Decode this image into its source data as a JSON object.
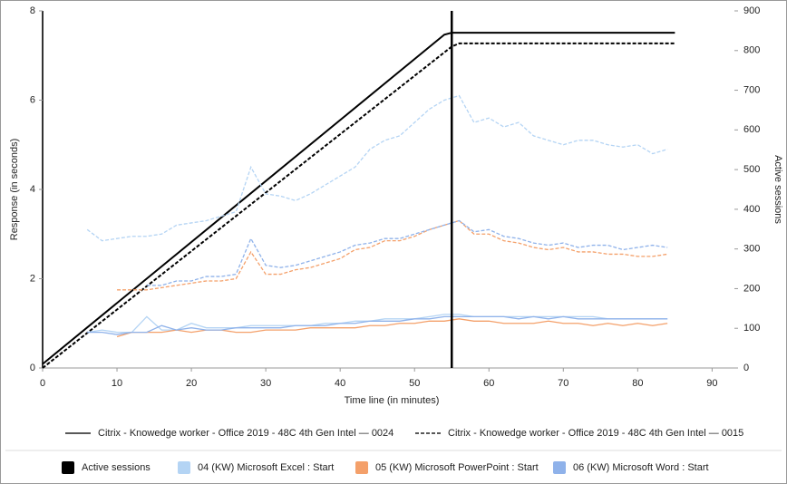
{
  "chart_data": {
    "type": "line",
    "xlabel": "Time line (in minutes)",
    "ylabel": "Response (in seconds)",
    "y2label": "Active sessions",
    "xlim": [
      0,
      93
    ],
    "xticks": [
      0,
      10,
      20,
      30,
      40,
      50,
      60,
      70,
      80,
      90
    ],
    "ylim": [
      0,
      8
    ],
    "yticks": [
      0,
      2,
      4,
      6,
      8
    ],
    "y2lim": [
      0,
      900
    ],
    "y2ticks": [
      0,
      100,
      200,
      300,
      400,
      500,
      600,
      700,
      800,
      900
    ],
    "vlines": [
      55
    ],
    "legend": {
      "styles": [
        {
          "name": "Citrix - Knowedge worker - Office 2019 - 48C 4th Gen Intel — 0024",
          "dash": "solid"
        },
        {
          "name": "Citrix - Knowedge worker - Office 2019 - 48C 4th Gen Intel — 0015",
          "dash": "dashed"
        }
      ],
      "colors": [
        {
          "name": "Active sessions",
          "color": "#000000"
        },
        {
          "name": "04 (KW) Microsoft Excel : Start",
          "color": "#b4d4f4"
        },
        {
          "name": "05 (KW) Microsoft PowerPoint : Start",
          "color": "#f4a06a"
        },
        {
          "name": "06 (KW) Microsoft Word : Start",
          "color": "#8fb2ea"
        }
      ]
    },
    "series": [
      {
        "color": "#000000",
        "dash": "solid",
        "axis": "y2",
        "x": [
          0,
          54,
          55,
          85
        ],
        "values": [
          10,
          840,
          845,
          845
        ]
      },
      {
        "color": "#000000",
        "dash": "dashed",
        "axis": "y2",
        "x": [
          0,
          55,
          56,
          85
        ],
        "values": [
          0,
          810,
          818,
          818
        ]
      },
      {
        "color": "#b4d4f4",
        "dash": "solid",
        "axis": "y",
        "x": [
          6,
          8,
          10,
          12,
          14,
          16,
          18,
          20,
          22,
          24,
          26,
          28,
          30,
          32,
          34,
          36,
          38,
          40,
          42,
          44,
          46,
          48,
          50,
          52,
          54,
          56,
          58,
          60,
          62,
          64,
          66,
          68,
          70,
          72,
          74,
          76,
          78,
          80,
          82,
          84
        ],
        "values": [
          0.8,
          0.85,
          0.8,
          0.8,
          1.15,
          0.85,
          0.85,
          1.0,
          0.9,
          0.9,
          0.9,
          0.95,
          0.95,
          0.95,
          0.95,
          0.95,
          1.0,
          1.0,
          1.05,
          1.05,
          1.1,
          1.1,
          1.1,
          1.15,
          1.2,
          1.2,
          1.15,
          1.15,
          1.15,
          1.15,
          1.15,
          1.15,
          1.15,
          1.15,
          1.15,
          1.1,
          1.1,
          1.1,
          1.1,
          1.1
        ]
      },
      {
        "color": "#f4a06a",
        "dash": "solid",
        "axis": "y",
        "x": [
          10,
          12,
          14,
          16,
          18,
          20,
          22,
          24,
          26,
          28,
          30,
          32,
          34,
          36,
          38,
          40,
          42,
          44,
          46,
          48,
          50,
          52,
          54,
          56,
          58,
          60,
          62,
          64,
          66,
          68,
          70,
          72,
          74,
          76,
          78,
          80,
          82,
          84
        ],
        "values": [
          0.7,
          0.8,
          0.8,
          0.8,
          0.85,
          0.8,
          0.85,
          0.85,
          0.8,
          0.8,
          0.85,
          0.85,
          0.85,
          0.9,
          0.9,
          0.9,
          0.9,
          0.95,
          0.95,
          1.0,
          1.0,
          1.05,
          1.05,
          1.1,
          1.05,
          1.05,
          1.0,
          1.0,
          1.0,
          1.05,
          1.0,
          1.0,
          0.95,
          1.0,
          0.95,
          1.0,
          0.95,
          1.0
        ]
      },
      {
        "color": "#8fb2ea",
        "dash": "solid",
        "axis": "y",
        "x": [
          6,
          8,
          10,
          12,
          14,
          16,
          18,
          20,
          22,
          24,
          26,
          28,
          30,
          32,
          34,
          36,
          38,
          40,
          42,
          44,
          46,
          48,
          50,
          52,
          54,
          56,
          58,
          60,
          62,
          64,
          66,
          68,
          70,
          72,
          74,
          76,
          78,
          80,
          82,
          84
        ],
        "values": [
          0.8,
          0.8,
          0.75,
          0.8,
          0.8,
          0.95,
          0.85,
          0.9,
          0.85,
          0.85,
          0.9,
          0.9,
          0.9,
          0.9,
          0.95,
          0.95,
          0.95,
          1.0,
          1.0,
          1.05,
          1.05,
          1.05,
          1.1,
          1.1,
          1.15,
          1.15,
          1.15,
          1.15,
          1.15,
          1.1,
          1.15,
          1.1,
          1.15,
          1.1,
          1.1,
          1.1,
          1.1,
          1.1,
          1.1,
          1.1
        ]
      },
      {
        "color": "#b4d4f4",
        "dash": "dashed",
        "axis": "y",
        "x": [
          6,
          8,
          10,
          12,
          14,
          16,
          18,
          20,
          22,
          24,
          26,
          28,
          30,
          32,
          34,
          36,
          38,
          40,
          42,
          44,
          46,
          48,
          50,
          52,
          54,
          56,
          58,
          60,
          62,
          64,
          66,
          68,
          70,
          72,
          74,
          76,
          78,
          80,
          82,
          84
        ],
        "values": [
          3.1,
          2.85,
          2.9,
          2.95,
          2.95,
          3.0,
          3.2,
          3.25,
          3.3,
          3.4,
          3.5,
          4.5,
          3.9,
          3.85,
          3.75,
          3.9,
          4.1,
          4.3,
          4.5,
          4.9,
          5.1,
          5.2,
          5.5,
          5.8,
          6.0,
          6.1,
          5.5,
          5.6,
          5.4,
          5.5,
          5.2,
          5.1,
          5.0,
          5.1,
          5.1,
          5.0,
          4.95,
          5.0,
          4.8,
          4.9
        ]
      },
      {
        "color": "#f4a06a",
        "dash": "dashed",
        "axis": "y",
        "x": [
          10,
          12,
          14,
          16,
          18,
          20,
          22,
          24,
          26,
          28,
          30,
          32,
          34,
          36,
          38,
          40,
          42,
          44,
          46,
          48,
          50,
          52,
          54,
          56,
          58,
          60,
          62,
          64,
          66,
          68,
          70,
          72,
          74,
          76,
          78,
          80,
          82,
          84
        ],
        "values": [
          1.75,
          1.75,
          1.75,
          1.8,
          1.85,
          1.9,
          1.95,
          1.95,
          2.0,
          2.6,
          2.1,
          2.1,
          2.2,
          2.25,
          2.35,
          2.45,
          2.65,
          2.7,
          2.85,
          2.85,
          2.95,
          3.1,
          3.2,
          3.3,
          3.0,
          3.0,
          2.85,
          2.8,
          2.7,
          2.65,
          2.7,
          2.6,
          2.6,
          2.55,
          2.55,
          2.5,
          2.5,
          2.55
        ]
      },
      {
        "color": "#8fb2ea",
        "dash": "dashed",
        "axis": "y",
        "x": [
          14,
          16,
          18,
          20,
          22,
          24,
          26,
          28,
          30,
          32,
          34,
          36,
          38,
          40,
          42,
          44,
          46,
          48,
          50,
          52,
          54,
          56,
          58,
          60,
          62,
          64,
          66,
          68,
          70,
          72,
          74,
          76,
          78,
          80,
          82,
          84
        ],
        "values": [
          1.85,
          1.85,
          1.95,
          1.95,
          2.05,
          2.05,
          2.1,
          2.9,
          2.3,
          2.25,
          2.3,
          2.4,
          2.5,
          2.6,
          2.75,
          2.8,
          2.9,
          2.9,
          3.0,
          3.1,
          3.2,
          3.3,
          3.05,
          3.1,
          2.95,
          2.9,
          2.8,
          2.75,
          2.8,
          2.7,
          2.75,
          2.75,
          2.65,
          2.7,
          2.75,
          2.7
        ]
      }
    ]
  }
}
